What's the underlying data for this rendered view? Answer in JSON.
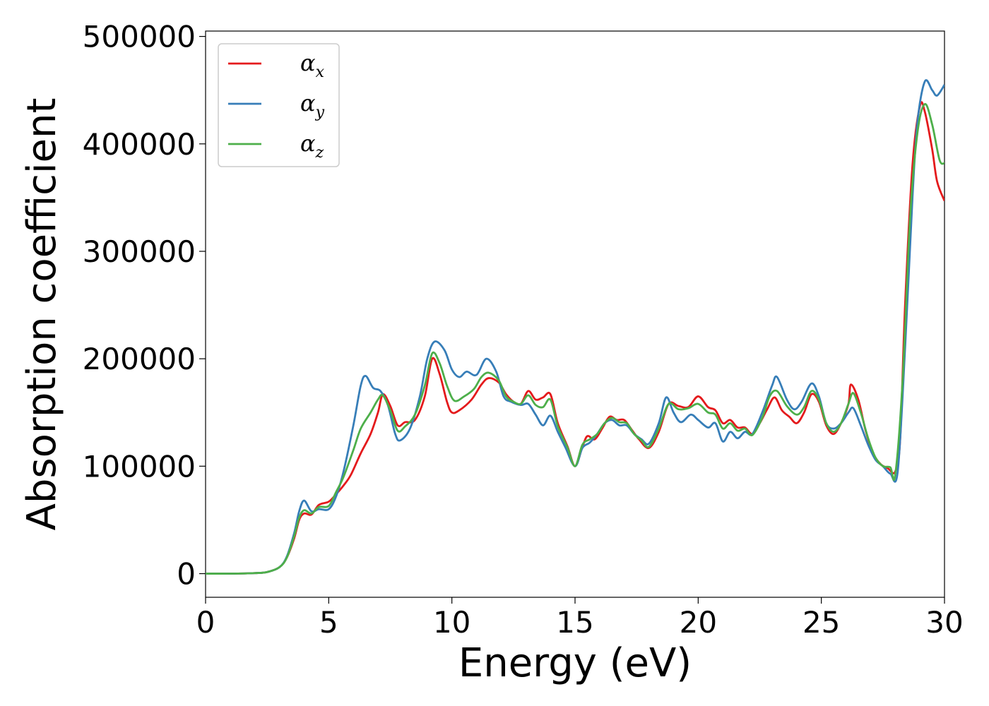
{
  "chart_data": {
    "type": "line",
    "title": "",
    "xlabel": "Energy (eV)",
    "ylabel": "Absorption coefficient",
    "xlim": [
      0,
      30
    ],
    "ylim": [
      -22000,
      505000
    ],
    "grid": false,
    "legend_position": "top-left",
    "x_ticks": [
      "0",
      "5",
      "10",
      "15",
      "20",
      "25",
      "30"
    ],
    "y_ticks": [
      "0",
      "100000",
      "200000",
      "300000",
      "400000",
      "500000"
    ],
    "series": [
      {
        "name": "α",
        "sub": "x",
        "color": "#e41a1c",
        "points": [
          [
            0,
            0
          ],
          [
            1,
            0
          ],
          [
            2,
            500
          ],
          [
            2.5,
            1500
          ],
          [
            3,
            6000
          ],
          [
            3.3,
            15000
          ],
          [
            3.6,
            33000
          ],
          [
            3.8,
            50000
          ],
          [
            4.0,
            56000
          ],
          [
            4.3,
            55000
          ],
          [
            4.6,
            64000
          ],
          [
            5.0,
            67000
          ],
          [
            5.3,
            74000
          ],
          [
            5.6,
            82000
          ],
          [
            5.9,
            92000
          ],
          [
            6.3,
            112000
          ],
          [
            6.7,
            130000
          ],
          [
            7.0,
            150000
          ],
          [
            7.2,
            167000
          ],
          [
            7.5,
            156000
          ],
          [
            7.8,
            138000
          ],
          [
            8.1,
            141000
          ],
          [
            8.5,
            143000
          ],
          [
            8.9,
            165000
          ],
          [
            9.2,
            200000
          ],
          [
            9.5,
            186000
          ],
          [
            9.8,
            160000
          ],
          [
            10.0,
            150000
          ],
          [
            10.3,
            152000
          ],
          [
            10.8,
            162000
          ],
          [
            11.2,
            176000
          ],
          [
            11.5,
            182000
          ],
          [
            11.9,
            178000
          ],
          [
            12.2,
            167000
          ],
          [
            12.5,
            160000
          ],
          [
            12.8,
            158000
          ],
          [
            13.1,
            170000
          ],
          [
            13.4,
            162000
          ],
          [
            13.7,
            164000
          ],
          [
            14.0,
            167000
          ],
          [
            14.3,
            140000
          ],
          [
            14.7,
            118000
          ],
          [
            15.0,
            100000
          ],
          [
            15.3,
            118000
          ],
          [
            15.5,
            128000
          ],
          [
            15.8,
            125000
          ],
          [
            16.1,
            135000
          ],
          [
            16.4,
            146000
          ],
          [
            16.7,
            143000
          ],
          [
            17.0,
            143000
          ],
          [
            17.3,
            134000
          ],
          [
            17.6,
            125000
          ],
          [
            18.0,
            117000
          ],
          [
            18.4,
            132000
          ],
          [
            18.8,
            158000
          ],
          [
            19.2,
            156000
          ],
          [
            19.6,
            155000
          ],
          [
            20.0,
            165000
          ],
          [
            20.4,
            155000
          ],
          [
            20.7,
            152000
          ],
          [
            21.0,
            140000
          ],
          [
            21.3,
            143000
          ],
          [
            21.6,
            136000
          ],
          [
            21.9,
            136000
          ],
          [
            22.2,
            130000
          ],
          [
            22.5,
            140000
          ],
          [
            22.8,
            153000
          ],
          [
            23.1,
            164000
          ],
          [
            23.4,
            152000
          ],
          [
            23.7,
            146000
          ],
          [
            24.0,
            140000
          ],
          [
            24.3,
            150000
          ],
          [
            24.6,
            167000
          ],
          [
            24.9,
            160000
          ],
          [
            25.2,
            138000
          ],
          [
            25.5,
            130000
          ],
          [
            25.8,
            140000
          ],
          [
            26.1,
            158000
          ],
          [
            26.2,
            176000
          ],
          [
            26.5,
            162000
          ],
          [
            26.8,
            133000
          ],
          [
            27.1,
            112000
          ],
          [
            27.4,
            102000
          ],
          [
            27.7,
            98000
          ],
          [
            28.0,
            95000
          ],
          [
            28.2,
            125000
          ],
          [
            28.4,
            250000
          ],
          [
            28.7,
            380000
          ],
          [
            29.0,
            435000
          ],
          [
            29.2,
            430000
          ],
          [
            29.5,
            395000
          ],
          [
            29.7,
            365000
          ],
          [
            30.0,
            347000
          ]
        ]
      },
      {
        "name": "α",
        "sub": "y",
        "color": "#377eb8",
        "points": [
          [
            0,
            0
          ],
          [
            1,
            0
          ],
          [
            2,
            500
          ],
          [
            2.5,
            1500
          ],
          [
            3,
            6000
          ],
          [
            3.3,
            16000
          ],
          [
            3.6,
            38000
          ],
          [
            3.8,
            58000
          ],
          [
            4.0,
            68000
          ],
          [
            4.3,
            58000
          ],
          [
            4.6,
            60000
          ],
          [
            5.0,
            60000
          ],
          [
            5.3,
            72000
          ],
          [
            5.6,
            95000
          ],
          [
            6.0,
            138000
          ],
          [
            6.3,
            175000
          ],
          [
            6.5,
            184000
          ],
          [
            6.8,
            173000
          ],
          [
            7.1,
            170000
          ],
          [
            7.4,
            157000
          ],
          [
            7.7,
            130000
          ],
          [
            7.9,
            124000
          ],
          [
            8.3,
            135000
          ],
          [
            8.7,
            165000
          ],
          [
            9.0,
            200000
          ],
          [
            9.3,
            216000
          ],
          [
            9.7,
            208000
          ],
          [
            10.0,
            190000
          ],
          [
            10.3,
            183000
          ],
          [
            10.6,
            188000
          ],
          [
            11.0,
            185000
          ],
          [
            11.4,
            200000
          ],
          [
            11.8,
            188000
          ],
          [
            12.1,
            165000
          ],
          [
            12.4,
            160000
          ],
          [
            12.8,
            157000
          ],
          [
            13.1,
            158000
          ],
          [
            13.4,
            148000
          ],
          [
            13.7,
            138000
          ],
          [
            14.0,
            147000
          ],
          [
            14.3,
            132000
          ],
          [
            14.6,
            118000
          ],
          [
            15.0,
            100000
          ],
          [
            15.3,
            117000
          ],
          [
            15.6,
            122000
          ],
          [
            15.9,
            130000
          ],
          [
            16.2,
            140000
          ],
          [
            16.5,
            143000
          ],
          [
            16.8,
            138000
          ],
          [
            17.1,
            138000
          ],
          [
            17.4,
            130000
          ],
          [
            17.7,
            125000
          ],
          [
            18.0,
            121000
          ],
          [
            18.4,
            140000
          ],
          [
            18.7,
            164000
          ],
          [
            19.0,
            150000
          ],
          [
            19.3,
            141000
          ],
          [
            19.7,
            148000
          ],
          [
            20.0,
            143000
          ],
          [
            20.4,
            136000
          ],
          [
            20.7,
            140000
          ],
          [
            21.0,
            123000
          ],
          [
            21.3,
            132000
          ],
          [
            21.6,
            126000
          ],
          [
            21.9,
            132000
          ],
          [
            22.2,
            130000
          ],
          [
            22.6,
            150000
          ],
          [
            23.0,
            175000
          ],
          [
            23.2,
            183000
          ],
          [
            23.6,
            162000
          ],
          [
            23.9,
            153000
          ],
          [
            24.2,
            160000
          ],
          [
            24.6,
            177000
          ],
          [
            24.9,
            165000
          ],
          [
            25.2,
            140000
          ],
          [
            25.5,
            135000
          ],
          [
            25.8,
            140000
          ],
          [
            26.1,
            150000
          ],
          [
            26.3,
            154000
          ],
          [
            26.6,
            138000
          ],
          [
            26.9,
            120000
          ],
          [
            27.2,
            106000
          ],
          [
            27.5,
            100000
          ],
          [
            27.8,
            93000
          ],
          [
            28.1,
            95000
          ],
          [
            28.4,
            210000
          ],
          [
            28.7,
            350000
          ],
          [
            28.9,
            420000
          ],
          [
            29.2,
            458000
          ],
          [
            29.5,
            450000
          ],
          [
            29.7,
            445000
          ],
          [
            30.0,
            455000
          ]
        ]
      },
      {
        "name": "α",
        "sub": "z",
        "color": "#4daf4a",
        "points": [
          [
            0,
            0
          ],
          [
            1,
            0
          ],
          [
            2,
            500
          ],
          [
            2.5,
            1500
          ],
          [
            3,
            6000
          ],
          [
            3.3,
            15000
          ],
          [
            3.6,
            35000
          ],
          [
            3.8,
            52000
          ],
          [
            4.0,
            59000
          ],
          [
            4.3,
            56000
          ],
          [
            4.6,
            62000
          ],
          [
            5.0,
            63000
          ],
          [
            5.3,
            76000
          ],
          [
            5.6,
            90000
          ],
          [
            6.0,
            115000
          ],
          [
            6.3,
            135000
          ],
          [
            6.7,
            150000
          ],
          [
            7.0,
            162000
          ],
          [
            7.2,
            166000
          ],
          [
            7.5,
            152000
          ],
          [
            7.8,
            133000
          ],
          [
            8.1,
            137000
          ],
          [
            8.5,
            148000
          ],
          [
            8.9,
            175000
          ],
          [
            9.2,
            205000
          ],
          [
            9.5,
            196000
          ],
          [
            9.8,
            175000
          ],
          [
            10.1,
            161000
          ],
          [
            10.5,
            165000
          ],
          [
            10.9,
            172000
          ],
          [
            11.2,
            183000
          ],
          [
            11.5,
            187000
          ],
          [
            11.9,
            180000
          ],
          [
            12.2,
            165000
          ],
          [
            12.5,
            160000
          ],
          [
            12.8,
            158000
          ],
          [
            13.1,
            166000
          ],
          [
            13.4,
            157000
          ],
          [
            13.7,
            155000
          ],
          [
            14.0,
            162000
          ],
          [
            14.3,
            137000
          ],
          [
            14.7,
            117000
          ],
          [
            15.0,
            100000
          ],
          [
            15.3,
            120000
          ],
          [
            15.6,
            125000
          ],
          [
            15.9,
            130000
          ],
          [
            16.2,
            140000
          ],
          [
            16.5,
            145000
          ],
          [
            16.8,
            141000
          ],
          [
            17.1,
            140000
          ],
          [
            17.4,
            130000
          ],
          [
            17.7,
            124000
          ],
          [
            18.0,
            118000
          ],
          [
            18.4,
            135000
          ],
          [
            18.8,
            158000
          ],
          [
            19.2,
            153000
          ],
          [
            19.6,
            154000
          ],
          [
            20.0,
            158000
          ],
          [
            20.4,
            150000
          ],
          [
            20.7,
            148000
          ],
          [
            21.0,
            135000
          ],
          [
            21.3,
            140000
          ],
          [
            21.6,
            133000
          ],
          [
            21.9,
            135000
          ],
          [
            22.2,
            129000
          ],
          [
            22.6,
            145000
          ],
          [
            22.9,
            165000
          ],
          [
            23.2,
            170000
          ],
          [
            23.6,
            156000
          ],
          [
            24.0,
            148000
          ],
          [
            24.3,
            155000
          ],
          [
            24.6,
            170000
          ],
          [
            24.9,
            162000
          ],
          [
            25.2,
            140000
          ],
          [
            25.5,
            132000
          ],
          [
            25.8,
            140000
          ],
          [
            26.1,
            158000
          ],
          [
            26.3,
            168000
          ],
          [
            26.6,
            150000
          ],
          [
            26.9,
            126000
          ],
          [
            27.2,
            108000
          ],
          [
            27.5,
            100000
          ],
          [
            27.8,
            99000
          ],
          [
            28.0,
            92000
          ],
          [
            28.3,
            180000
          ],
          [
            28.6,
            330000
          ],
          [
            28.9,
            410000
          ],
          [
            29.2,
            437000
          ],
          [
            29.5,
            418000
          ],
          [
            29.8,
            385000
          ],
          [
            30.0,
            382000
          ]
        ]
      }
    ]
  }
}
